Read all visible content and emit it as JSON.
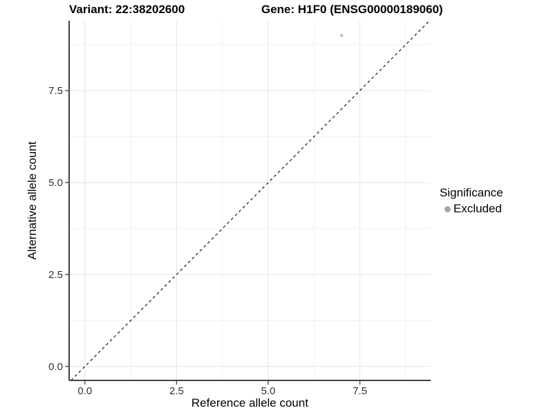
{
  "header": {
    "variant_title": "Variant: 22:38202600",
    "gene_title": "Gene: H1F0 (ENSG00000189060)"
  },
  "legend": {
    "title": "Significance",
    "items": [
      {
        "label": "Excluded",
        "marker": "circle",
        "color": "#a6a6a6"
      }
    ]
  },
  "chart_data": {
    "type": "scatter",
    "title": "Variant: 22:38202600",
    "subtitle": "Gene: H1F0 (ENSG00000189060)",
    "xlabel": "Reference allele count",
    "ylabel": "Alternative allele count",
    "xlim": [
      -0.43,
      9.43
    ],
    "ylim": [
      -0.38,
      9.4
    ],
    "x_ticks": [
      0,
      2.5,
      5,
      7.5
    ],
    "x_tick_labels": [
      "0.0",
      "2.5",
      "5.0",
      "7.5"
    ],
    "x_minor_ticks": [
      1.25,
      3.75,
      6.25,
      8.75
    ],
    "y_ticks": [
      0,
      2.5,
      5,
      7.5
    ],
    "y_tick_labels": [
      "0.0",
      "2.5",
      "5.0",
      "7.5"
    ],
    "y_minor_ticks": [
      1.25,
      3.75,
      6.25,
      8.75
    ],
    "grid": true,
    "legend_position": "right",
    "series": [
      {
        "name": "Excluded",
        "color": "#c6c6c6",
        "point_radius": 2.5,
        "points": [
          {
            "x": 7,
            "y": 9
          }
        ]
      }
    ],
    "reference_line": {
      "kind": "identity",
      "equation": "y = x",
      "style": "dashed",
      "color": "#111111"
    },
    "colors": {
      "grid_major": "#e4e4e4",
      "grid_minor": "#f1f1f1",
      "axis_line": "#404040",
      "tick_label": "#303030",
      "background": "#ffffff"
    }
  }
}
